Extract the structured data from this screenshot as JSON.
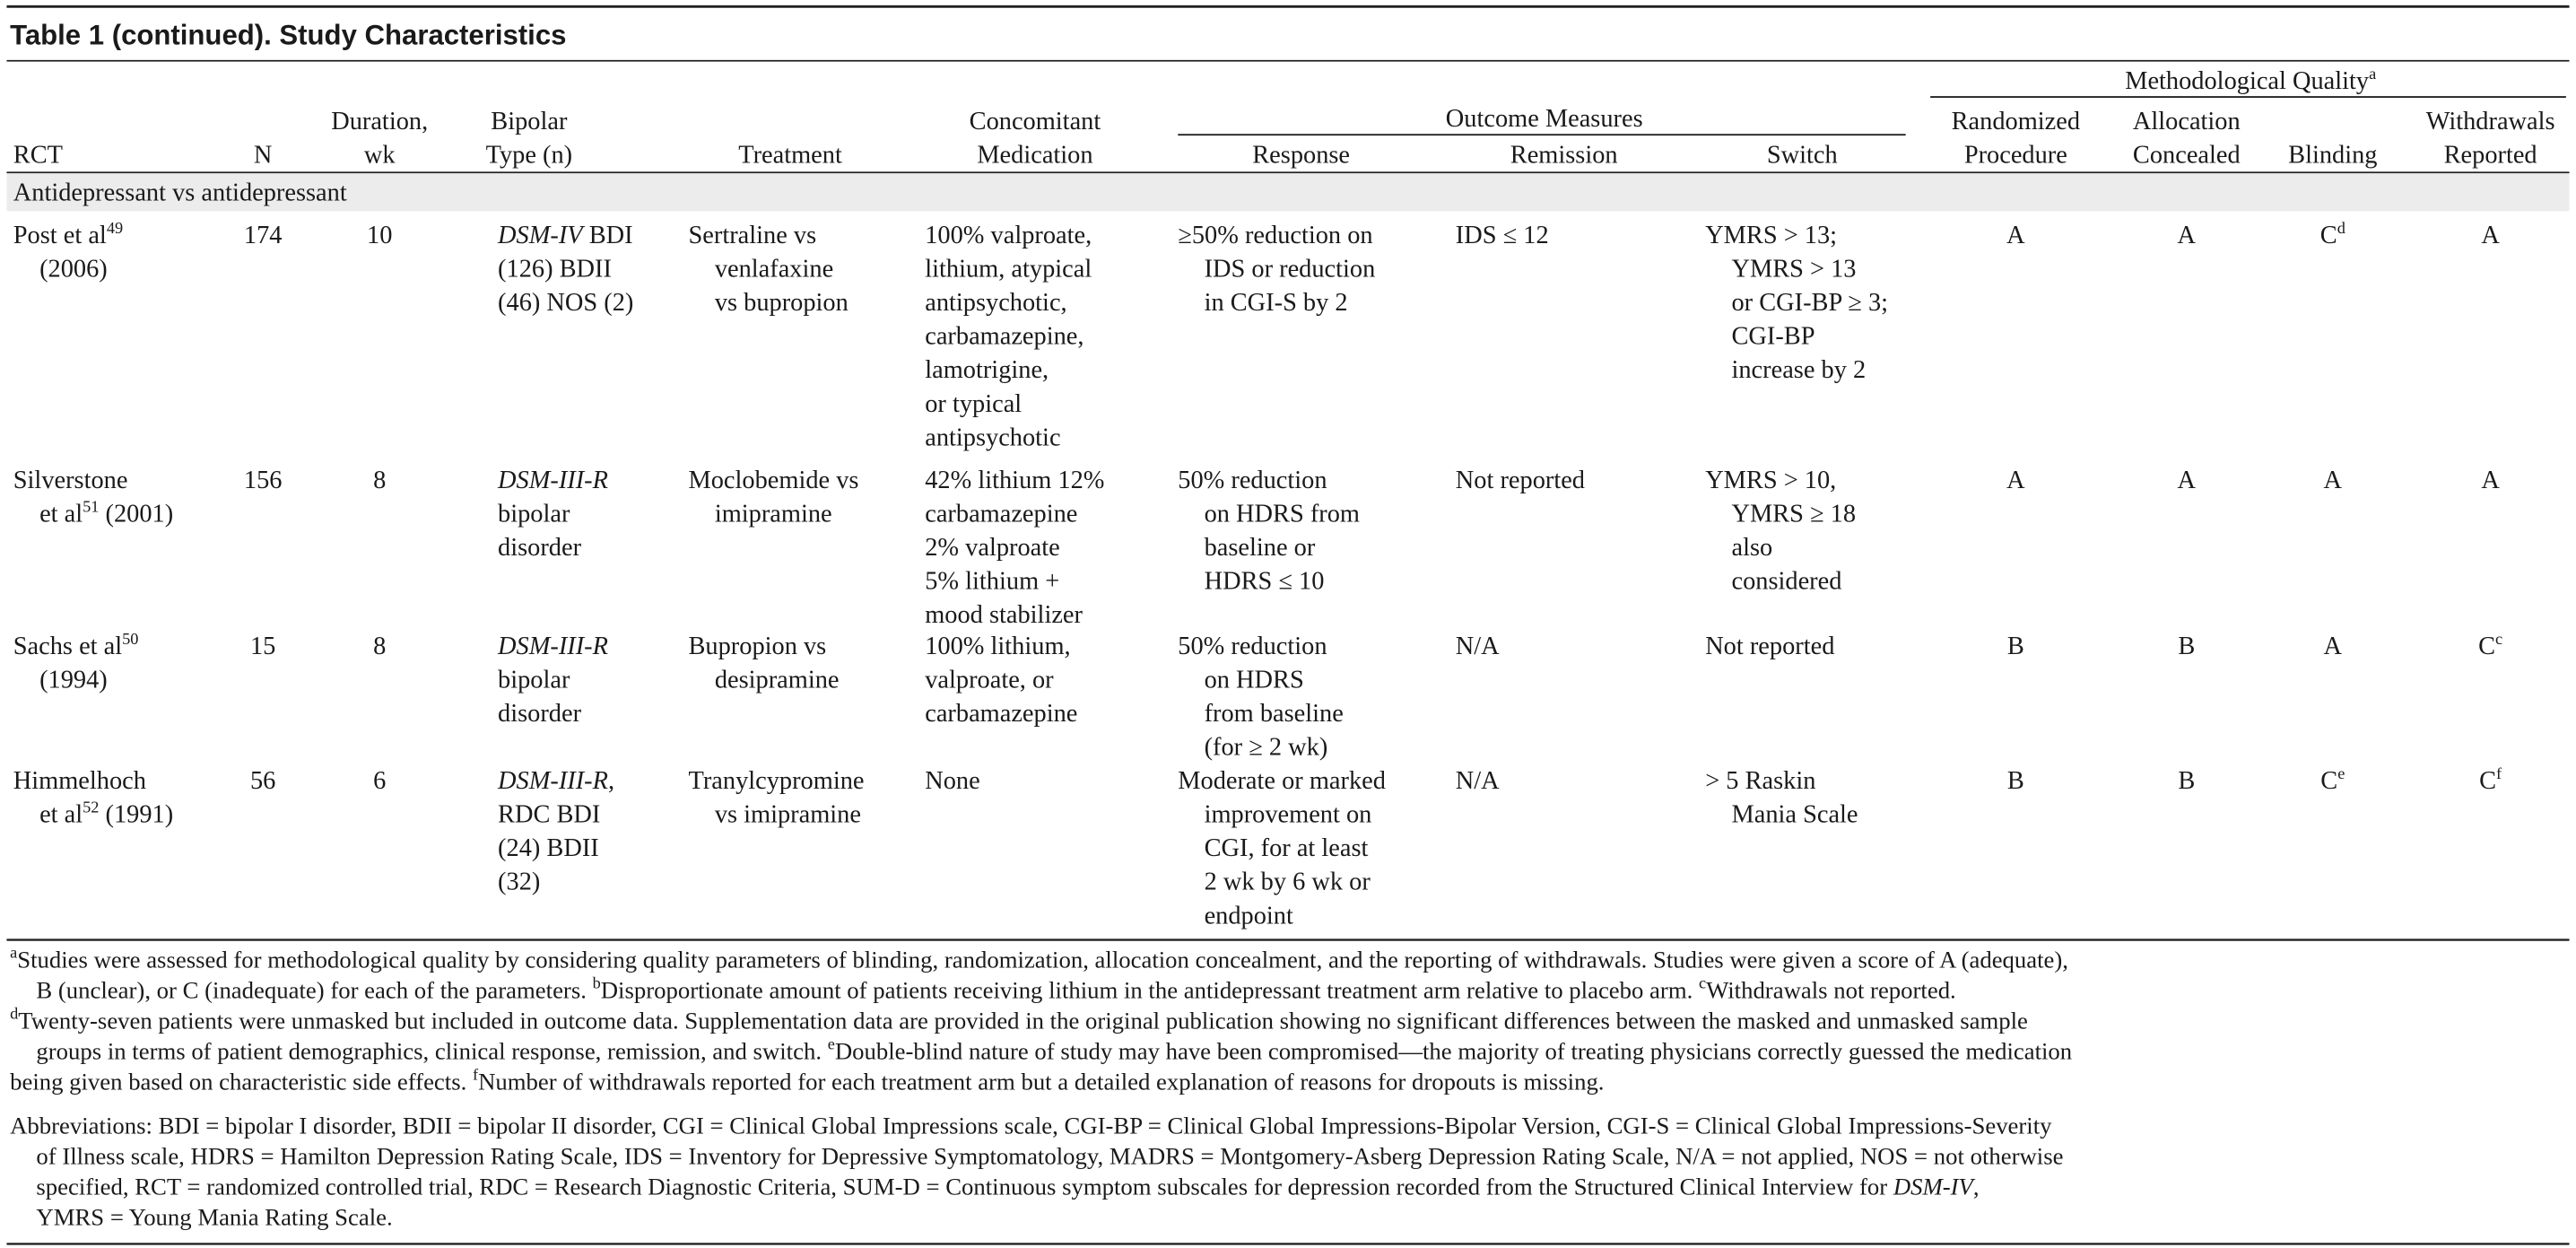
{
  "title": "Table 1 (continued). Study Characteristics",
  "header": {
    "group_quality": [
      [
        "Methodological Quality",
        {
          "sup": "a"
        }
      ]
    ],
    "group_outcome": "Outcome Measures",
    "columns": [
      [
        "RCT"
      ],
      [
        "N"
      ],
      [
        "Duration,",
        "wk"
      ],
      [
        "Bipolar",
        "Type (n)"
      ],
      [
        "Treatment"
      ],
      [
        "Concomitant",
        "Medication"
      ],
      [
        "Response"
      ],
      [
        "Remission"
      ],
      [
        "Switch"
      ],
      [
        "Randomized",
        "Procedure"
      ],
      [
        "Allocation",
        "Concealed"
      ],
      [
        "Blinding"
      ],
      [
        "Withdrawals",
        "Reported"
      ]
    ]
  },
  "section": "Antidepressant vs antidepressant",
  "rows": [
    {
      "rct": [
        [
          "Post et al",
          {
            "sup": "49"
          }
        ],
        [
          "(2006)"
        ]
      ],
      "n": 174,
      "duration": 10,
      "bipolar": [
        [
          {
            "i": "DSM-IV"
          },
          " BDI"
        ],
        [
          "(126) BDII"
        ],
        [
          "(46) NOS (2)"
        ]
      ],
      "treatment": [
        "Sertraline vs",
        "venlafaxine",
        "vs bupropion"
      ],
      "medication": [
        "100% valproate,",
        "lithium, atypical",
        "antipsychotic,",
        "carbamazepine,",
        "lamotrigine,",
        "or typical",
        "antipsychotic"
      ],
      "response": [
        "≥50% reduction on",
        "IDS or reduction",
        "in CGI-S by 2"
      ],
      "remission": [
        "IDS ≤ 12"
      ],
      "switch": [
        "YMRS > 13;",
        "YMRS > 13",
        "or CGI-BP ≥ 3;",
        "CGI-BP",
        "increase by 2"
      ],
      "randomized": "A",
      "allocation": "A",
      "blinding": [
        [
          "C",
          {
            "sup": "d"
          }
        ]
      ],
      "withdrawals": "A"
    },
    {
      "rct": [
        [
          "Silverstone"
        ],
        [
          "et al",
          {
            "sup": "51"
          },
          " (2001)"
        ]
      ],
      "n": 156,
      "duration": 8,
      "bipolar": [
        [
          {
            "i": "DSM-III-R"
          }
        ],
        [
          "bipolar"
        ],
        [
          "disorder"
        ]
      ],
      "treatment": [
        "Moclobemide vs",
        "imipramine"
      ],
      "medication": [
        "42% lithium 12%",
        "carbamazepine",
        "2% valproate",
        "5% lithium +",
        "mood stabilizer"
      ],
      "response": [
        "50% reduction",
        "on HDRS from",
        "baseline or",
        "HDRS ≤ 10"
      ],
      "remission": [
        "Not reported"
      ],
      "switch": [
        "YMRS > 10,",
        "YMRS ≥ 18",
        "also",
        "considered"
      ],
      "randomized": "A",
      "allocation": "A",
      "blinding": "A",
      "withdrawals": "A"
    },
    {
      "rct": [
        [
          "Sachs et al",
          {
            "sup": "50"
          }
        ],
        [
          "(1994)"
        ]
      ],
      "n": 15,
      "duration": 8,
      "bipolar": [
        [
          {
            "i": "DSM-III-R"
          }
        ],
        [
          "bipolar"
        ],
        [
          "disorder"
        ]
      ],
      "treatment": [
        "Bupropion vs",
        "desipramine"
      ],
      "medication": [
        "100% lithium,",
        "valproate, or",
        "carbamazepine"
      ],
      "response": [
        "50% reduction",
        "on HDRS",
        "from baseline",
        "(for ≥ 2 wk)"
      ],
      "remission": [
        "N/A"
      ],
      "switch": [
        "Not reported"
      ],
      "randomized": "B",
      "allocation": "B",
      "blinding": "A",
      "withdrawals": [
        [
          "C",
          {
            "sup": "c"
          }
        ]
      ]
    },
    {
      "rct": [
        [
          "Himmelhoch"
        ],
        [
          "et al",
          {
            "sup": "52"
          },
          " (1991)"
        ]
      ],
      "n": 56,
      "duration": 6,
      "bipolar": [
        [
          {
            "i": "DSM-III-R"
          },
          ","
        ],
        [
          "RDC BDI"
        ],
        [
          "(24) BDII"
        ],
        [
          "(32)"
        ]
      ],
      "treatment": [
        "Tranylcypromine",
        "vs imipramine"
      ],
      "medication": [
        "None"
      ],
      "response": [
        "Moderate or marked",
        "improvement on",
        "CGI, for at least",
        "2 wk by 6 wk or",
        "endpoint"
      ],
      "remission": [
        "N/A"
      ],
      "switch": [
        "> 5 Raskin",
        "Mania Scale"
      ],
      "randomized": "B",
      "allocation": "B",
      "blinding": [
        [
          "C",
          {
            "sup": "e"
          }
        ]
      ],
      "withdrawals": [
        [
          "C",
          {
            "sup": "f"
          }
        ]
      ]
    }
  ],
  "footnotes": [
    [
      {
        "sup": "a"
      },
      "Studies were assessed for methodological quality by considering quality parameters of blinding, randomization, allocation concealment, and the reporting of withdrawals. Studies were given a score of A (adequate),"
    ],
    [
      "B (unclear), or C (inadequate) for each of the parameters.  ",
      {
        "sup": "b"
      },
      "Disproportionate amount of patients receiving lithium in the antidepressant treatment arm relative to placebo arm.  ",
      {
        "sup": "c"
      },
      "Withdrawals not reported."
    ],
    [
      {
        "sup": "d"
      },
      "Twenty-seven patients were unmasked but included in outcome data. Supplementation data are provided in the original publication showing no significant differences between the masked and unmasked sample"
    ],
    [
      "groups in terms of patient demographics, clinical response, remission, and switch.  ",
      {
        "sup": "e"
      },
      "Double-blind nature of study may have been compromised—the majority of treating physicians correctly guessed the medication"
    ],
    [
      "being given based on characteristic side effects.  ",
      {
        "sup": "f"
      },
      "Number of withdrawals reported for each treatment arm but a detailed explanation of reasons for dropouts is missing."
    ]
  ],
  "abbreviations": [
    [
      "Abbreviations: BDI = bipolar I disorder, BDII = bipolar II disorder, CGI = Clinical Global Impressions scale, CGI-BP = Clinical Global Impressions-Bipolar Version, CGI-S = Clinical Global Impressions-Severity"
    ],
    [
      "of Illness scale, HDRS = Hamilton Depression Rating Scale, IDS = Inventory for Depressive Symptomatology, MADRS = Montgomery-Asberg Depression Rating Scale, N/A = not applied, NOS = not otherwise"
    ],
    [
      "specified, RCT = randomized controlled trial, RDC = Research Diagnostic Criteria, SUM-D = Continuous symptom subscales for depression recorded from the Structured Clinical Interview for ",
      {
        "i": "DSM-IV"
      },
      ","
    ],
    [
      "YMRS = Young Mania Rating Scale."
    ]
  ]
}
